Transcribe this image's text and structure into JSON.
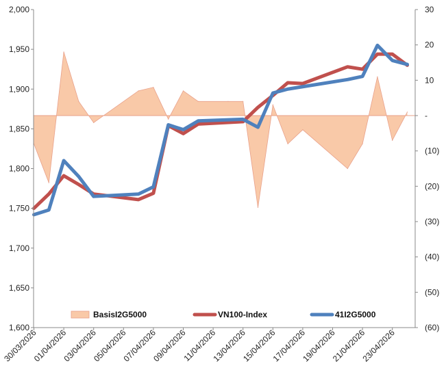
{
  "chart_data": {
    "type": "line",
    "title": "",
    "x": [
      "30/03/2026",
      "31/03/2026",
      "01/04/2026",
      "02/04/2026",
      "03/04/2026",
      "04/04/2026",
      "05/04/2026",
      "06/04/2026",
      "07/04/2026",
      "08/04/2026",
      "09/04/2026",
      "10/04/2026",
      "11/04/2026",
      "12/04/2026",
      "13/04/2026",
      "14/04/2026",
      "15/04/2026",
      "16/04/2026",
      "17/04/2026",
      "18/04/2026",
      "19/04/2026",
      "20/04/2026",
      "21/04/2026",
      "22/04/2026",
      "23/04/2026",
      "24/04/2026",
      "25/04/2026"
    ],
    "xtick_labels": [
      "30/03/2026",
      "01/04/2026",
      "03/04/2026",
      "05/04/2026",
      "07/04/2026",
      "09/04/2026",
      "11/04/2026",
      "13/04/2026",
      "15/04/2026",
      "17/04/2026",
      "19/04/2026",
      "21/04/2026",
      "23/04/2026"
    ],
    "ylim_left": [
      1600,
      2000
    ],
    "yticks_left": [
      "1,600",
      "1,650",
      "1,700",
      "1,750",
      "1,800",
      "1,850",
      "1,900",
      "1,950",
      "2,000"
    ],
    "ylim_right": [
      -60,
      30
    ],
    "yticks_right": [
      "(60)",
      "(50)",
      "(40)",
      "(30)",
      "(20)",
      "(10)",
      "-",
      "10",
      "20",
      "30"
    ],
    "legend_position": "bottom",
    "series": [
      {
        "name": "BasisI2G5000",
        "kind": "area",
        "axis": "right",
        "color": "#f9c9a8",
        "edge_color": "#e8a08a",
        "points": [
          {
            "x": 0,
            "y": -8
          },
          {
            "x": 1,
            "y": -19
          },
          {
            "x": 2,
            "y": 18
          },
          {
            "x": 3,
            "y": 4
          },
          {
            "x": 4,
            "y": -2
          },
          {
            "x": 7,
            "y": 7
          },
          {
            "x": 8,
            "y": 8
          },
          {
            "x": 9,
            "y": -1
          },
          {
            "x": 10,
            "y": 7
          },
          {
            "x": 11,
            "y": 4
          },
          {
            "x": 13,
            "y": 4
          },
          {
            "x": 14,
            "y": 4
          },
          {
            "x": 15,
            "y": -26
          },
          {
            "x": 16,
            "y": 3
          },
          {
            "x": 17,
            "y": -8
          },
          {
            "x": 18,
            "y": -4
          },
          {
            "x": 21,
            "y": -15
          },
          {
            "x": 22,
            "y": -8
          },
          {
            "x": 23,
            "y": 11
          },
          {
            "x": 24,
            "y": -7
          },
          {
            "x": 25,
            "y": 1
          }
        ]
      },
      {
        "name": "VN100-Index",
        "kind": "line",
        "axis": "left",
        "color": "#c0504d",
        "points": [
          {
            "x": 0,
            "y": 1750
          },
          {
            "x": 1,
            "y": 1768
          },
          {
            "x": 2,
            "y": 1791
          },
          {
            "x": 3,
            "y": 1780
          },
          {
            "x": 4,
            "y": 1768
          },
          {
            "x": 7,
            "y": 1761
          },
          {
            "x": 8,
            "y": 1769
          },
          {
            "x": 9,
            "y": 1854
          },
          {
            "x": 10,
            "y": 1844
          },
          {
            "x": 11,
            "y": 1856
          },
          {
            "x": 14,
            "y": 1859
          },
          {
            "x": 15,
            "y": 1877
          },
          {
            "x": 16,
            "y": 1892
          },
          {
            "x": 17,
            "y": 1908
          },
          {
            "x": 18,
            "y": 1907
          },
          {
            "x": 21,
            "y": 1928
          },
          {
            "x": 22,
            "y": 1925
          },
          {
            "x": 23,
            "y": 1944
          },
          {
            "x": 24,
            "y": 1944
          },
          {
            "x": 25,
            "y": 1930
          }
        ]
      },
      {
        "name": "41I2G5000",
        "kind": "line",
        "axis": "left",
        "color": "#4f81bd",
        "points": [
          {
            "x": 0,
            "y": 1742
          },
          {
            "x": 1,
            "y": 1748
          },
          {
            "x": 2,
            "y": 1810
          },
          {
            "x": 3,
            "y": 1790
          },
          {
            "x": 4,
            "y": 1765
          },
          {
            "x": 7,
            "y": 1768
          },
          {
            "x": 8,
            "y": 1777
          },
          {
            "x": 9,
            "y": 1855
          },
          {
            "x": 10,
            "y": 1849
          },
          {
            "x": 11,
            "y": 1860
          },
          {
            "x": 14,
            "y": 1862
          },
          {
            "x": 15,
            "y": 1852
          },
          {
            "x": 16,
            "y": 1895
          },
          {
            "x": 17,
            "y": 1900
          },
          {
            "x": 18,
            "y": 1903
          },
          {
            "x": 21,
            "y": 1912
          },
          {
            "x": 22,
            "y": 1916
          },
          {
            "x": 23,
            "y": 1955
          },
          {
            "x": 24,
            "y": 1936
          },
          {
            "x": 25,
            "y": 1931
          }
        ]
      }
    ]
  }
}
